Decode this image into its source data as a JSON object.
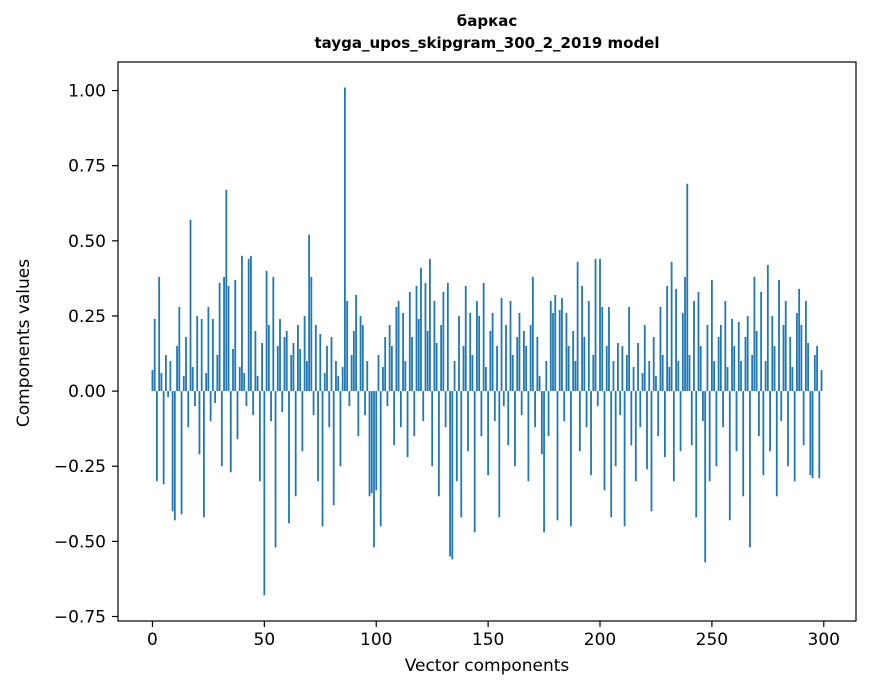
{
  "chart_data": {
    "type": "bar",
    "title_line1": "баркас",
    "title_line2": "tayga_upos_skipgram_300_2_2019 model",
    "xlabel": "Vector components",
    "ylabel": "Components values",
    "bar_color": "#1f77b4",
    "xlim": [
      -15.4,
      314.4
    ],
    "ylim": [
      -0.765,
      1.095
    ],
    "grid": false,
    "legend": "none",
    "xticks": [
      {
        "value": 0,
        "label": "0"
      },
      {
        "value": 50,
        "label": "50"
      },
      {
        "value": 100,
        "label": "100"
      },
      {
        "value": 150,
        "label": "150"
      },
      {
        "value": 200,
        "label": "200"
      },
      {
        "value": 250,
        "label": "250"
      },
      {
        "value": 300,
        "label": "300"
      }
    ],
    "yticks": [
      {
        "value": -0.75,
        "label": "−0.75"
      },
      {
        "value": -0.5,
        "label": "−0.50"
      },
      {
        "value": -0.25,
        "label": "−0.25"
      },
      {
        "value": 0.0,
        "label": "0.00"
      },
      {
        "value": 0.25,
        "label": "0.25"
      },
      {
        "value": 0.5,
        "label": "0.50"
      },
      {
        "value": 0.75,
        "label": "0.75"
      },
      {
        "value": 1.0,
        "label": "1.00"
      }
    ],
    "values": [
      0.07,
      0.24,
      -0.3,
      0.38,
      0.06,
      -0.31,
      0.12,
      -0.02,
      0.1,
      -0.4,
      -0.43,
      0.15,
      0.28,
      -0.41,
      0.05,
      0.18,
      -0.12,
      0.57,
      0.08,
      -0.05,
      0.25,
      -0.21,
      0.24,
      -0.42,
      0.06,
      0.28,
      -0.1,
      0.24,
      -0.04,
      0.12,
      0.36,
      -0.25,
      0.38,
      0.67,
      0.35,
      -0.27,
      0.14,
      0.37,
      -0.16,
      0.08,
      0.45,
      0.06,
      -0.05,
      0.44,
      0.45,
      -0.08,
      0.2,
      0.05,
      -0.3,
      0.16,
      -0.68,
      0.4,
      0.22,
      -0.1,
      0.38,
      -0.52,
      0.15,
      0.24,
      -0.07,
      0.18,
      0.2,
      -0.44,
      0.12,
      0.16,
      -0.35,
      0.22,
      0.14,
      -0.2,
      0.25,
      0.1,
      0.52,
      0.38,
      -0.08,
      0.22,
      -0.3,
      0.19,
      -0.45,
      0.06,
      0.15,
      -0.12,
      0.18,
      -0.38,
      0.1,
      0.05,
      -0.25,
      0.08,
      1.01,
      0.3,
      -0.05,
      0.12,
      0.2,
      0.32,
      -0.15,
      0.25,
      0.22,
      -0.08,
      0.1,
      -0.35,
      -0.34,
      -0.52,
      -0.33,
      0.12,
      -0.45,
      0.08,
      0.18,
      -0.05,
      0.22,
      0.15,
      -0.18,
      0.28,
      0.3,
      -0.12,
      0.26,
      0.1,
      -0.22,
      0.33,
      0.18,
      -0.15,
      0.35,
      0.24,
      0.41,
      -0.1,
      0.36,
      0.2,
      0.44,
      -0.25,
      0.3,
      0.16,
      -0.35,
      0.22,
      0.33,
      -0.12,
      0.36,
      -0.55,
      -0.56,
      0.1,
      -0.3,
      0.25,
      -0.42,
      0.15,
      0.35,
      -0.2,
      0.26,
      0.12,
      -0.47,
      0.3,
      0.25,
      -0.15,
      0.36,
      0.08,
      -0.28,
      0.2,
      0.26,
      -0.1,
      0.15,
      -0.42,
      0.31,
      -0.05,
      0.22,
      -0.18,
      0.3,
      0.12,
      -0.25,
      0.18,
      0.26,
      -0.08,
      0.2,
      0.15,
      -0.3,
      0.22,
      0.38,
      -0.12,
      0.18,
      0.05,
      -0.21,
      -0.47,
      0.1,
      -0.15,
      0.3,
      0.26,
      0.32,
      -0.43,
      0.27,
      0.31,
      -0.1,
      0.26,
      0.15,
      -0.45,
      0.2,
      0.1,
      0.43,
      -0.2,
      0.35,
      0.18,
      -0.12,
      0.3,
      -0.28,
      0.12,
      0.44,
      -0.05,
      0.44,
      0.28,
      -0.33,
      0.15,
      0.28,
      -0.42,
      0.1,
      -0.25,
      0.16,
      -0.08,
      0.15,
      -0.45,
      0.12,
      0.28,
      -0.18,
      0.08,
      -0.3,
      0.16,
      -0.12,
      0.06,
      0.22,
      -0.26,
      0.1,
      -0.4,
      0.18,
      0.05,
      -0.15,
      0.28,
      0.12,
      -0.22,
      0.35,
      0.08,
      0.43,
      -0.3,
      0.34,
      0.1,
      -0.2,
      0.26,
      0.38,
      0.69,
      0.12,
      -0.18,
      0.3,
      -0.42,
      0.33,
      0.15,
      -0.1,
      -0.57,
      0.22,
      -0.3,
      0.37,
      0.1,
      -0.25,
      0.18,
      0.22,
      -0.12,
      0.3,
      0.08,
      -0.43,
      0.24,
      0.15,
      -0.2,
      0.23,
      0.1,
      -0.35,
      0.18,
      0.25,
      -0.52,
      0.12,
      0.38,
      0.2,
      -0.15,
      0.33,
      -0.28,
      0.1,
      0.42,
      -0.2,
      0.25,
      0.15,
      -0.35,
      0.37,
      -0.1,
      0.22,
      0.3,
      -0.25,
      0.18,
      0.08,
      -0.3,
      0.26,
      0.34,
      0.22,
      -0.18,
      0.3,
      0.16,
      -0.28,
      -0.29,
      0.12,
      0.15,
      -0.29,
      0.07
    ]
  }
}
